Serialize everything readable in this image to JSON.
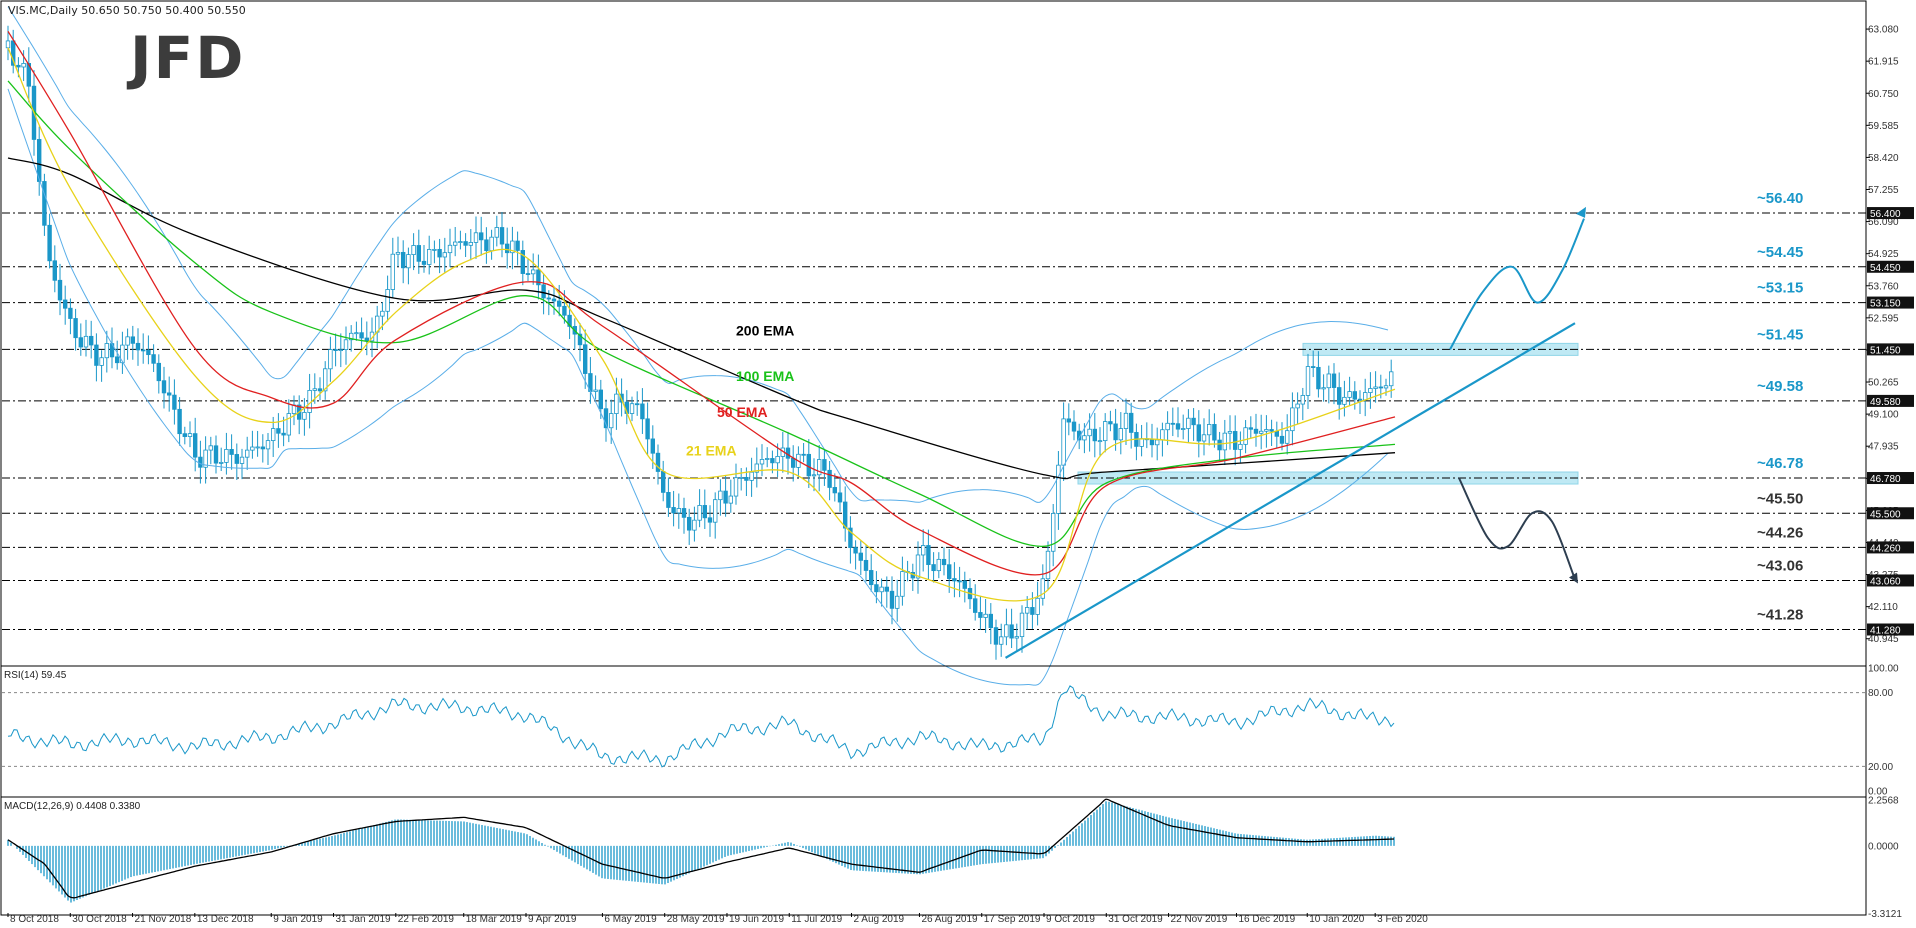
{
  "header": {
    "symbol_line": "VIS.MC,Daily  50.650 50.750 50.400 50.550",
    "logo": "JFD"
  },
  "colors": {
    "ema200": "#000000",
    "ema100": "#19c219",
    "ema50": "#e02020",
    "ema21": "#e8d21a",
    "bollinger": "#5aaee8",
    "candle": "#1a97c9",
    "projection_up": "#1a97c9",
    "projection_down": "#2d3e50",
    "zone_fill": "#bfe9f4",
    "grid_dash": "#000000"
  },
  "chart_data": [
    {
      "type": "candlestick",
      "title": "VIS.MC,Daily  50.650 50.750 50.400 50.550",
      "ylim": [
        40.1,
        63.7
      ],
      "y_tick_labels": [
        "63.080",
        "61.915",
        "60.750",
        "59.585",
        "58.420",
        "57.255",
        "56.090",
        "54.925",
        "53.760",
        "52.595",
        "51.430",
        "50.265",
        "49.100",
        "47.935",
        "46.770",
        "45.605",
        "44.440",
        "43.275",
        "42.110",
        "40.945"
      ],
      "x_tick_labels": [
        "8 Oct 2018",
        "30 Oct 2018",
        "21 Nov 2018",
        "13 Dec 2018",
        "9 Jan 2019",
        "31 Jan 2019",
        "22 Feb 2019",
        "18 Mar 2019",
        "9 Apr 2019",
        "6 May 2019",
        "28 May 2019",
        "19 Jun 2019",
        "11 Jul 2019",
        "2 Aug 2019",
        "26 Aug 2019",
        "17 Sep 2019",
        "9 Oct 2019",
        "31 Oct 2019",
        "22 Nov 2019",
        "16 Dec 2019",
        "10 Jan 2020",
        "3 Feb 2020"
      ],
      "close_path": {
        "dates": [
          "8 Oct 2018",
          "15 Oct 2018",
          "22 Oct 2018",
          "30 Oct 2018",
          "7 Nov 2018",
          "14 Nov 2018",
          "21 Nov 2018",
          "28 Nov 2018",
          "5 Dec 2018",
          "13 Dec 2018",
          "20 Dec 2018",
          "28 Dec 2018",
          "9 Jan 2019",
          "16 Jan 2019",
          "23 Jan 2019",
          "31 Jan 2019",
          "7 Feb 2019",
          "14 Feb 2019",
          "22 Feb 2019",
          "1 Mar 2019",
          "8 Mar 2019",
          "18 Mar 2019",
          "25 Mar 2019",
          "1 Apr 2019",
          "9 Apr 2019",
          "16 Apr 2019",
          "24 Apr 2019",
          "6 May 2019",
          "13 May 2019",
          "20 May 2019",
          "28 May 2019",
          "4 Jun 2019",
          "11 Jun 2019",
          "19 Jun 2019",
          "26 Jun 2019",
          "3 Jul 2019",
          "11 Jul 2019",
          "18 Jul 2019",
          "25 Jul 2019",
          "2 Aug 2019",
          "9 Aug 2019",
          "16 Aug 2019",
          "26 Aug 2019",
          "2 Sep 2019",
          "9 Sep 2019",
          "17 Sep 2019",
          "24 Sep 2019",
          "1 Oct 2019",
          "9 Oct 2019",
          "16 Oct 2019",
          "23 Oct 2019",
          "31 Oct 2019",
          "7 Nov 2019",
          "14 Nov 2019",
          "22 Nov 2019",
          "29 Nov 2019",
          "6 Dec 2019",
          "16 Dec 2019",
          "23 Dec 2019",
          "2 Jan 2020",
          "10 Jan 2020",
          "17 Jan 2020",
          "24 Jan 2020",
          "3 Feb 2020",
          "10 Feb 2020"
        ],
        "values": [
          62.4,
          61.3,
          54.8,
          52.3,
          51.3,
          51.2,
          51.8,
          51.0,
          49.3,
          47.6,
          47.6,
          47.5,
          48.2,
          49.0,
          49.6,
          51.4,
          52.0,
          51.9,
          54.9,
          54.8,
          54.9,
          55.4,
          55.4,
          55.5,
          54.4,
          53.4,
          52.6,
          48.9,
          49.6,
          49.1,
          46.0,
          45.2,
          45.4,
          46.2,
          46.9,
          47.5,
          47.6,
          47.2,
          46.9,
          44.3,
          43.0,
          42.3,
          44.0,
          43.6,
          43.0,
          41.7,
          40.9,
          41.5,
          42.9,
          48.9,
          48.2,
          48.5,
          48.7,
          47.9,
          48.7,
          48.7,
          48.3,
          48.1,
          48.6,
          48.2,
          50.6,
          50.2,
          49.6,
          50.0,
          50.55
        ]
      },
      "series": [
        {
          "name": "200 EMA",
          "x": [
            "8 Oct 2018",
            "30 Oct 2018",
            "13 Dec 2018",
            "22 Feb 2019",
            "9 Apr 2019",
            "6 May 2019",
            "11 Jul 2019",
            "2 Aug 2019",
            "9 Oct 2019",
            "31 Oct 2019",
            "10 Feb 2020"
          ],
          "values": [
            58.4,
            57.8,
            55.6,
            53.3,
            53.6,
            52.6,
            49.7,
            48.9,
            46.9,
            47.0,
            47.7
          ]
        },
        {
          "name": "100 EMA",
          "x": [
            "8 Oct 2018",
            "30 Oct 2018",
            "13 Dec 2018",
            "9 Jan 2019",
            "22 Feb 2019",
            "9 Apr 2019",
            "6 May 2019",
            "11 Jul 2019",
            "26 Aug 2019",
            "9 Oct 2019",
            "31 Oct 2019",
            "16 Dec 2019",
            "10 Feb 2020"
          ],
          "values": [
            61.2,
            58.7,
            54.6,
            52.8,
            51.7,
            53.4,
            51.4,
            48.4,
            46.2,
            44.3,
            46.6,
            47.5,
            48.0
          ]
        },
        {
          "name": "50 EMA",
          "x": [
            "8 Oct 2018",
            "30 Oct 2018",
            "13 Dec 2018",
            "9 Jan 2019",
            "31 Jan 2019",
            "22 Feb 2019",
            "9 Apr 2019",
            "6 May 2019",
            "11 Jul 2019",
            "2 Aug 2019",
            "26 Aug 2019",
            "9 Oct 2019",
            "31 Oct 2019",
            "16 Dec 2019",
            "10 Feb 2020"
          ],
          "values": [
            63.0,
            59.3,
            51.5,
            49.7,
            49.5,
            51.8,
            53.9,
            52.3,
            47.6,
            46.6,
            44.9,
            43.3,
            46.5,
            47.5,
            49.0
          ]
        },
        {
          "name": "21 EMA",
          "x": [
            "8 Oct 2018",
            "30 Oct 2018",
            "13 Dec 2018",
            "9 Jan 2019",
            "31 Jan 2019",
            "22 Feb 2019",
            "18 Mar 2019",
            "9 Apr 2019",
            "6 May 2019",
            "28 May 2019",
            "11 Jul 2019",
            "2 Aug 2019",
            "26 Aug 2019",
            "9 Oct 2019",
            "31 Oct 2019",
            "16 Dec 2019",
            "10 Feb 2020"
          ],
          "values": [
            62.4,
            57.3,
            50.5,
            48.8,
            50.3,
            52.8,
            54.6,
            54.8,
            51.1,
            47.0,
            47.0,
            44.8,
            43.2,
            42.6,
            47.8,
            48.1,
            50.0
          ]
        }
      ],
      "levels": [
        {
          "value": 56.4,
          "label": "~56.40",
          "axis_tag": "56.400"
        },
        {
          "value": 54.45,
          "label": "~54.45",
          "axis_tag": "54.450"
        },
        {
          "value": 53.15,
          "label": "~53.15",
          "axis_tag": "53.150"
        },
        {
          "value": 51.45,
          "label": "~51.45",
          "axis_tag": "51.450"
        },
        {
          "value": 49.58,
          "label": "~49.58",
          "axis_tag": "49.580"
        },
        {
          "value": 46.78,
          "label": "~46.78",
          "axis_tag": "46.780"
        },
        {
          "value": 45.5,
          "label": "~45.50",
          "axis_tag": "45.500"
        },
        {
          "value": 44.26,
          "label": "~44.26",
          "axis_tag": "44.260"
        },
        {
          "value": 43.06,
          "label": "~43.06",
          "axis_tag": "43.060"
        },
        {
          "value": 41.28,
          "label": "~41.28",
          "axis_tag": "41.280"
        }
      ],
      "annotations": [
        {
          "text": "200 EMA",
          "color": "#000000"
        },
        {
          "text": "100 EMA",
          "color": "#19c219"
        },
        {
          "text": "50 EMA",
          "color": "#e02020"
        },
        {
          "text": "21 EMA",
          "color": "#e8d21a"
        }
      ],
      "grid": false,
      "legend": "none"
    },
    {
      "type": "line",
      "title": "RSI(14) 59.45",
      "ylim": [
        0,
        100
      ],
      "y_tick_labels": [
        "100.00",
        "80.00",
        "20.00",
        "0.00"
      ],
      "reference_lines": [
        80,
        20
      ],
      "series": [
        {
          "name": "RSI(14)",
          "last": 59.45,
          "x": [
            "8 Oct 2018",
            "30 Oct 2018",
            "21 Nov 2018",
            "13 Dec 2018",
            "9 Jan 2019",
            "31 Jan 2019",
            "22 Feb 2019",
            "18 Mar 2019",
            "9 Apr 2019",
            "6 May 2019",
            "28 May 2019",
            "19 Jun 2019",
            "11 Jul 2019",
            "2 Aug 2019",
            "26 Aug 2019",
            "17 Sep 2019",
            "9 Oct 2019",
            "16 Oct 2019",
            "31 Oct 2019",
            "22 Nov 2019",
            "16 Dec 2019",
            "10 Jan 2020",
            "3 Feb 2020",
            "10 Feb 2020"
          ],
          "values": [
            45,
            38,
            42,
            36,
            44,
            55,
            70,
            68,
            62,
            28,
            26,
            48,
            55,
            32,
            44,
            36,
            42,
            83,
            62,
            60,
            56,
            70,
            58,
            59.45
          ]
        }
      ]
    },
    {
      "type": "bar",
      "title": "MACD(12,26,9) 0.4408 0.3380",
      "ylim": [
        -3.2,
        2.4
      ],
      "y_tick_labels": [
        "2.2568",
        "0.0000",
        "-3.3121"
      ],
      "series": [
        {
          "name": "MACD(12,26,9)",
          "last": 0.4408,
          "x": [
            "8 Oct 2018",
            "30 Oct 2018",
            "21 Nov 2018",
            "13 Dec 2018",
            "9 Jan 2019",
            "31 Jan 2019",
            "22 Feb 2019",
            "18 Mar 2019",
            "9 Apr 2019",
            "6 May 2019",
            "28 May 2019",
            "19 Jun 2019",
            "11 Jul 2019",
            "2 Aug 2019",
            "26 Aug 2019",
            "17 Sep 2019",
            "9 Oct 2019",
            "31 Oct 2019",
            "22 Nov 2019",
            "16 Dec 2019",
            "10 Jan 2020",
            "3 Feb 2020",
            "10 Feb 2020"
          ],
          "values": [
            0.3,
            -2.8,
            -1.5,
            -0.9,
            -0.2,
            0.5,
            1.3,
            1.2,
            0.6,
            -1.6,
            -1.9,
            -0.5,
            0.2,
            -1.2,
            -1.4,
            -0.9,
            -0.6,
            2.2,
            1.4,
            0.6,
            0.3,
            0.5,
            0.4408
          ]
        },
        {
          "name": "Signal",
          "last": 0.338,
          "x": [
            "8 Oct 2018",
            "21 Oct 2018",
            "30 Oct 2018",
            "21 Nov 2018",
            "13 Dec 2018",
            "9 Jan 2019",
            "31 Jan 2019",
            "22 Feb 2019",
            "18 Mar 2019",
            "9 Apr 2019",
            "6 May 2019",
            "28 May 2019",
            "19 Jun 2019",
            "11 Jul 2019",
            "2 Aug 2019",
            "26 Aug 2019",
            "17 Sep 2019",
            "9 Oct 2019",
            "31 Oct 2019",
            "22 Nov 2019",
            "16 Dec 2019",
            "10 Jan 2020",
            "10 Feb 2020"
          ],
          "values": [
            0.3,
            -0.9,
            -2.6,
            -1.8,
            -1.0,
            -0.3,
            0.6,
            1.2,
            1.4,
            0.9,
            -0.9,
            -1.6,
            -0.8,
            -0.1,
            -0.9,
            -1.3,
            -0.2,
            -0.4,
            2.3,
            1.0,
            0.4,
            0.2,
            0.338
          ]
        }
      ]
    }
  ]
}
